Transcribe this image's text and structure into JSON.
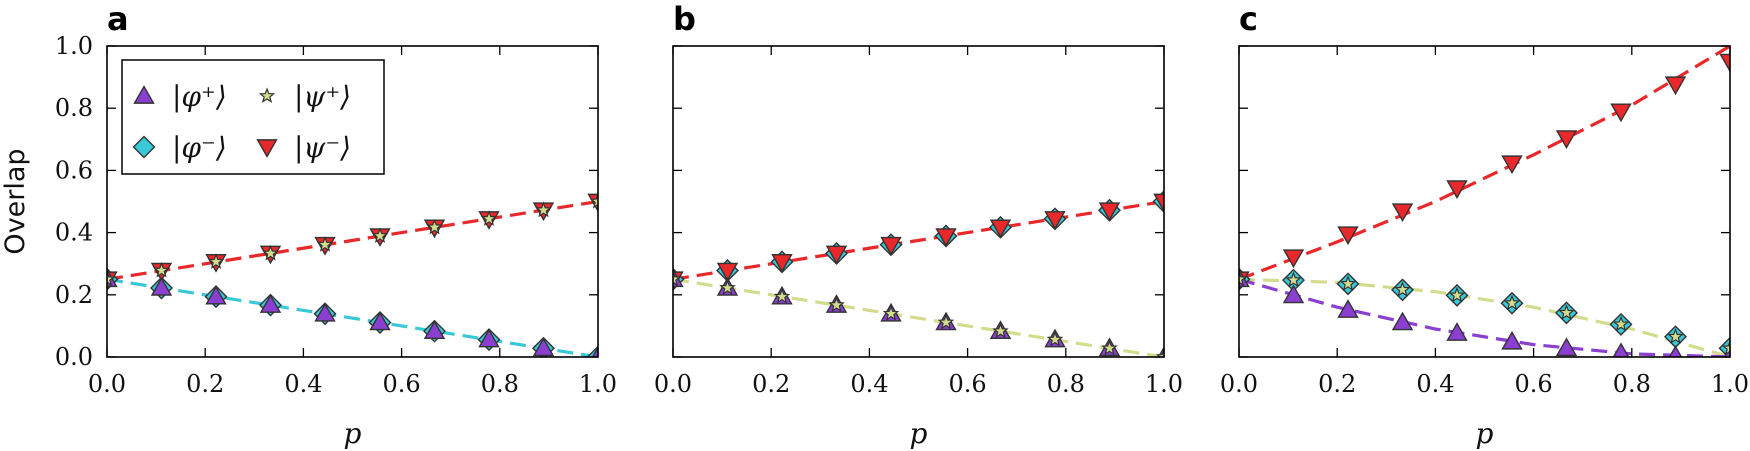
{
  "chart_data": [
    {
      "type": "scatter",
      "panel_label": "a",
      "xlabel": "p",
      "ylabel": "Overlap",
      "xlim": [
        0,
        1
      ],
      "ylim": [
        0,
        1
      ],
      "xticks": [
        "0.0",
        "0.2",
        "0.4",
        "0.6",
        "0.8",
        "1.0"
      ],
      "yticks": [
        "0.0",
        "0.2",
        "0.4",
        "0.6",
        "0.8",
        "1.0"
      ],
      "legend": {
        "position": "top-left",
        "columns": 2
      },
      "x": [
        0,
        0.111,
        0.222,
        0.333,
        0.444,
        0.556,
        0.667,
        0.778,
        0.889,
        1.0
      ],
      "series": [
        {
          "name": "|φ⁺⟩",
          "marker": "triangle-up",
          "color": "#8a3fd1",
          "values": [
            0.25,
            0.222,
            0.194,
            0.167,
            0.139,
            0.111,
            0.083,
            0.056,
            0.028,
            0.0
          ]
        },
        {
          "name": "|φ⁻⟩",
          "marker": "diamond",
          "color": "#38c8d8",
          "values": [
            0.25,
            0.222,
            0.194,
            0.167,
            0.139,
            0.111,
            0.083,
            0.056,
            0.028,
            0.0
          ]
        },
        {
          "name": "|ψ⁺⟩",
          "marker": "star",
          "color": "#d2dc8c",
          "values": [
            0.25,
            0.278,
            0.306,
            0.333,
            0.361,
            0.389,
            0.417,
            0.444,
            0.472,
            0.5
          ]
        },
        {
          "name": "|ψ⁻⟩",
          "marker": "triangle-down",
          "color": "#e8282a",
          "values": [
            0.25,
            0.278,
            0.306,
            0.333,
            0.361,
            0.389,
            0.417,
            0.444,
            0.472,
            0.5
          ]
        }
      ],
      "fit_lines": [
        {
          "color": "#e8282a",
          "from": [
            0,
            0.25
          ],
          "to": [
            1,
            0.5
          ]
        },
        {
          "color": "#38c8d8",
          "from": [
            0,
            0.25
          ],
          "to": [
            1,
            0.0
          ]
        }
      ]
    },
    {
      "type": "scatter",
      "panel_label": "b",
      "xlabel": "p",
      "ylabel": "",
      "xlim": [
        0,
        1
      ],
      "ylim": [
        0,
        1
      ],
      "xticks": [
        "0.0",
        "0.2",
        "0.4",
        "0.6",
        "0.8",
        "1.0"
      ],
      "yticks": [],
      "x": [
        0,
        0.111,
        0.222,
        0.333,
        0.444,
        0.556,
        0.667,
        0.778,
        0.889,
        1.0
      ],
      "series": [
        {
          "name": "|φ⁺⟩",
          "marker": "triangle-up",
          "color": "#8a3fd1",
          "values": [
            0.25,
            0.222,
            0.194,
            0.167,
            0.139,
            0.111,
            0.083,
            0.056,
            0.028,
            0.0
          ]
        },
        {
          "name": "|φ⁻⟩",
          "marker": "diamond",
          "color": "#38c8d8",
          "values": [
            0.25,
            0.278,
            0.306,
            0.333,
            0.361,
            0.389,
            0.417,
            0.444,
            0.472,
            0.5
          ]
        },
        {
          "name": "|ψ⁺⟩",
          "marker": "star",
          "color": "#d2dc8c",
          "values": [
            0.25,
            0.222,
            0.194,
            0.167,
            0.139,
            0.111,
            0.083,
            0.056,
            0.028,
            0.0
          ]
        },
        {
          "name": "|ψ⁻⟩",
          "marker": "triangle-down",
          "color": "#e8282a",
          "values": [
            0.25,
            0.278,
            0.306,
            0.333,
            0.361,
            0.389,
            0.417,
            0.444,
            0.472,
            0.5
          ]
        }
      ],
      "fit_lines": [
        {
          "color": "#e8282a",
          "from": [
            0,
            0.25
          ],
          "to": [
            1,
            0.5
          ]
        },
        {
          "color": "#d2dc8c",
          "from": [
            0,
            0.25
          ],
          "to": [
            1,
            0.0
          ]
        }
      ]
    },
    {
      "type": "scatter",
      "panel_label": "c",
      "xlabel": "p",
      "ylabel": "",
      "xlim": [
        0,
        1
      ],
      "ylim": [
        0,
        1
      ],
      "xticks": [
        "0.0",
        "0.2",
        "0.4",
        "0.6",
        "0.8",
        "1.0"
      ],
      "yticks": [],
      "x": [
        0,
        0.111,
        0.222,
        0.333,
        0.444,
        0.556,
        0.667,
        0.778,
        0.889,
        1.0
      ],
      "series": [
        {
          "name": "|φ⁺⟩",
          "marker": "triangle-up",
          "color": "#8a3fd1",
          "values": [
            0.25,
            0.198,
            0.151,
            0.111,
            0.077,
            0.049,
            0.028,
            0.012,
            0.003,
            0.0
          ]
        },
        {
          "name": "|φ⁻⟩",
          "marker": "diamond",
          "color": "#38c8d8",
          "values": [
            0.25,
            0.247,
            0.235,
            0.216,
            0.198,
            0.173,
            0.142,
            0.105,
            0.065,
            0.028
          ]
        },
        {
          "name": "|ψ⁺⟩",
          "marker": "star",
          "color": "#d2dc8c",
          "values": [
            0.25,
            0.247,
            0.235,
            0.216,
            0.198,
            0.173,
            0.142,
            0.105,
            0.065,
            0.028
          ]
        },
        {
          "name": "|ψ⁻⟩",
          "marker": "triangle-down",
          "color": "#e8282a",
          "values": [
            0.25,
            0.321,
            0.395,
            0.469,
            0.543,
            0.623,
            0.704,
            0.79,
            0.877,
            0.95
          ]
        }
      ],
      "fit_lines": [
        {
          "color": "#e8282a",
          "points": [
            [
              0,
              0.25
            ],
            [
              0.2,
              0.37
            ],
            [
              0.4,
              0.5
            ],
            [
              0.6,
              0.65
            ],
            [
              0.8,
              0.81
            ],
            [
              1.0,
              1.0
            ]
          ]
        },
        {
          "color": "#d2dc8c",
          "points": [
            [
              0,
              0.25
            ],
            [
              0.2,
              0.24
            ],
            [
              0.4,
              0.21
            ],
            [
              0.6,
              0.16
            ],
            [
              0.8,
              0.09
            ],
            [
              1.0,
              0.0
            ]
          ]
        },
        {
          "color": "#8a3fd1",
          "points": [
            [
              0,
              0.25
            ],
            [
              0.2,
              0.16
            ],
            [
              0.4,
              0.09
            ],
            [
              0.6,
              0.04
            ],
            [
              0.8,
              0.01
            ],
            [
              1.0,
              0.0
            ]
          ]
        }
      ]
    }
  ]
}
